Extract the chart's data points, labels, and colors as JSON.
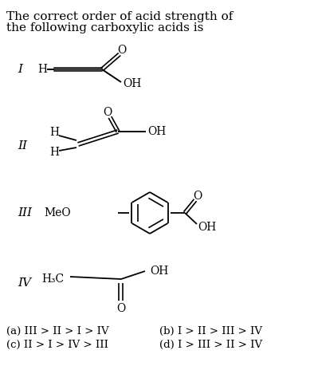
{
  "bg_color": "#ffffff",
  "text_color": "#000000",
  "title_line1": "The correct order of acid strength of",
  "title_line2": "the following carboxylic acids is",
  "options": [
    "(a) III > II > I > IV",
    "(b) I > II > III > IV",
    "(c) II > I > IV > III",
    "(d) I > III > II > IV"
  ],
  "fig_w": 3.94,
  "fig_h": 4.59,
  "dpi": 100
}
